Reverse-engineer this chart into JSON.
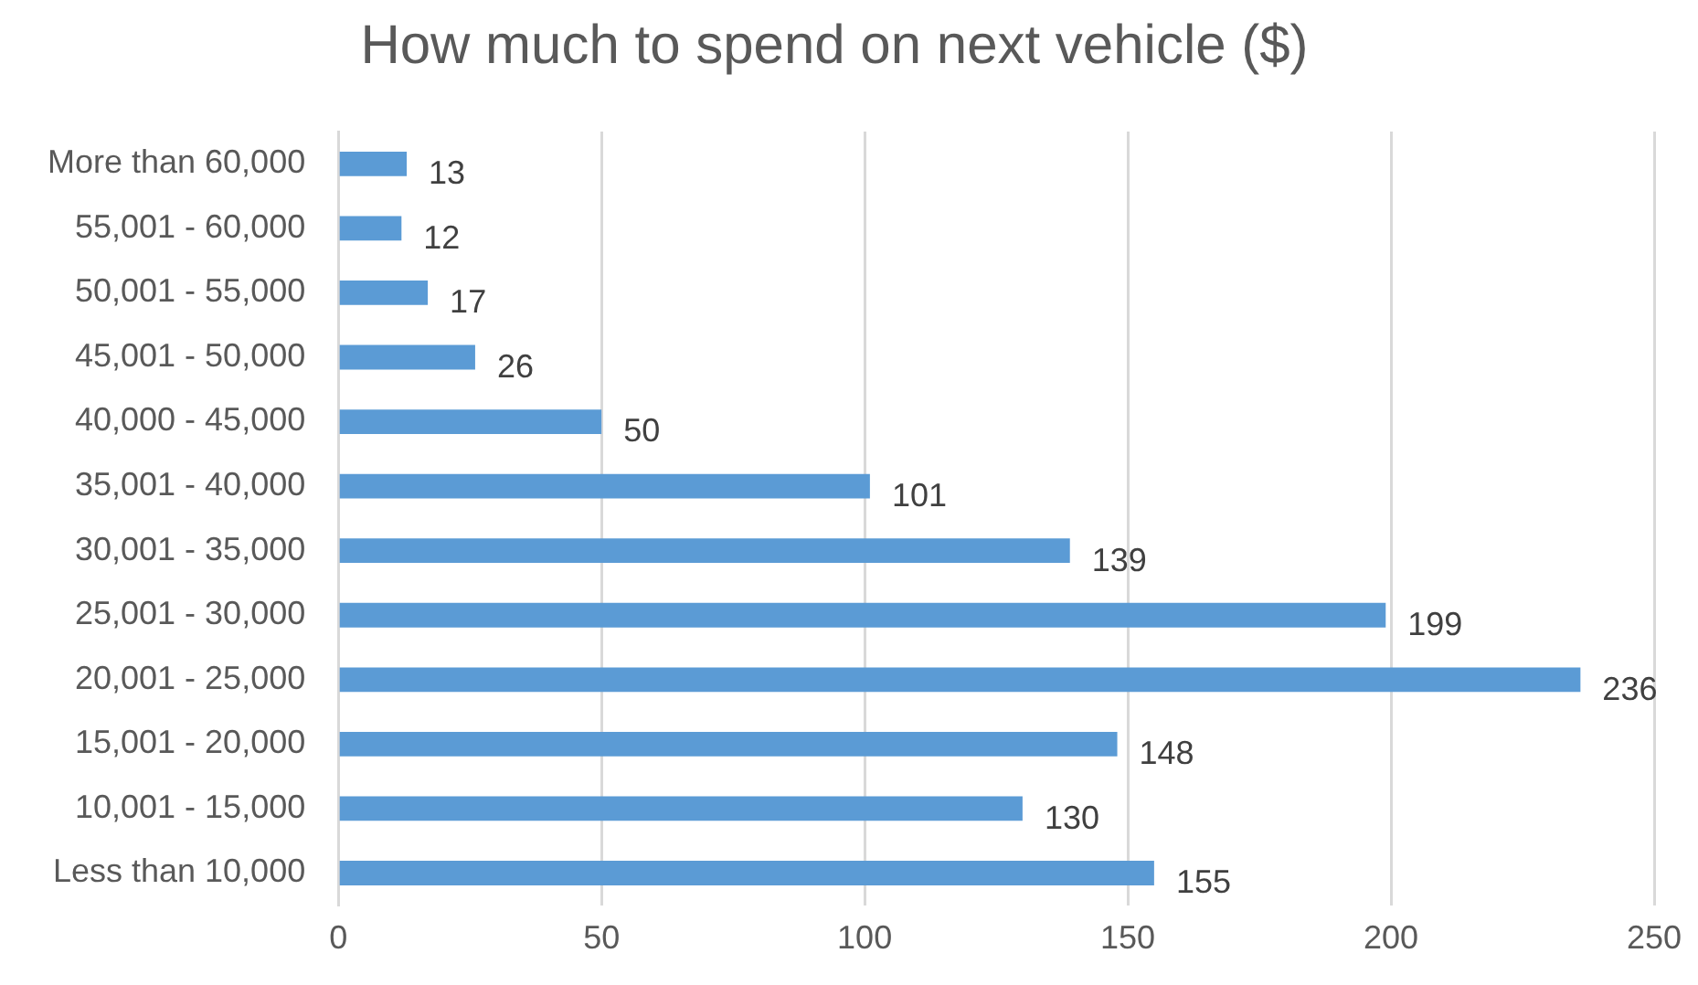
{
  "chart_data": {
    "type": "bar",
    "orientation": "horizontal",
    "title": "How much to spend on next vehicle ($)",
    "categories": [
      "More than 60,000",
      "55,001 - 60,000",
      "50,001 - 55,000",
      "45,001 - 50,000",
      "40,000 - 45,000",
      "35,001 - 40,000",
      "30,001 - 35,000",
      "25,001 - 30,000",
      "20,001 - 25,000",
      "15,001 - 20,000",
      "10,001 - 15,000",
      "Less than 10,000"
    ],
    "values": [
      13,
      12,
      17,
      26,
      50,
      101,
      139,
      199,
      236,
      148,
      130,
      155
    ],
    "color": "#5b9bd5",
    "xlim": [
      0,
      250
    ],
    "xticks": [
      0,
      50,
      100,
      150,
      200,
      250
    ],
    "grid": "x",
    "data_labels": true,
    "legend": false
  }
}
